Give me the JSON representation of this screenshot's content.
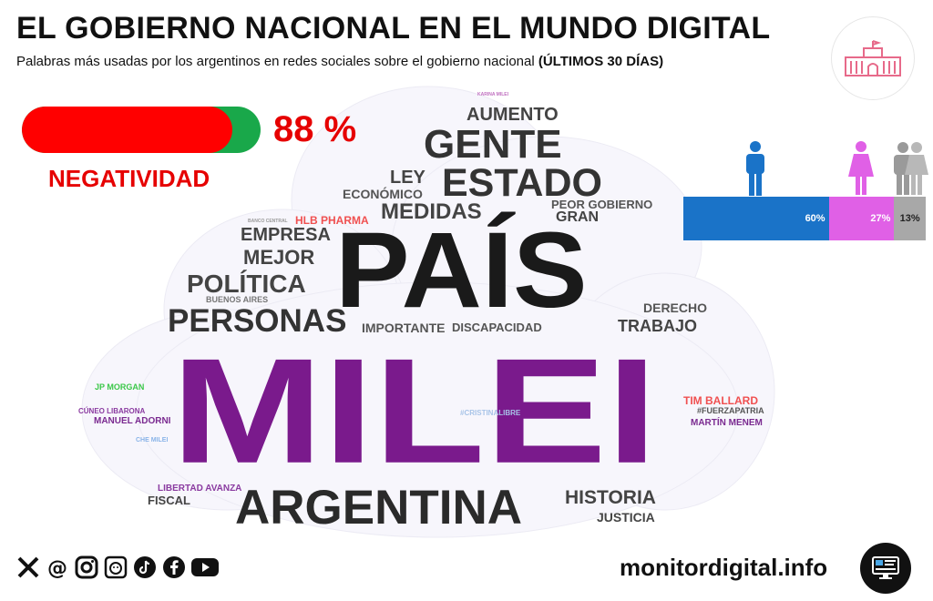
{
  "header": {
    "title": "EL GOBIERNO NACIONAL EN EL MUNDO DIGITAL",
    "subtitle": "Palabras más usadas por los argentinos en redes sociales sobre el gobierno nacional",
    "subtitle_period": "(ÚLTIMOS 30 DÍAS)"
  },
  "sentiment": {
    "percent_text": "88 %",
    "value": 0.88,
    "label": "NEGATIVIDAD",
    "colors": {
      "negative": "#ff0000",
      "positive": "#19a84a",
      "text": "#e60000"
    }
  },
  "gender": {
    "segments": [
      {
        "key": "male",
        "value_text": "60%",
        "value": 60,
        "color": "#1a73c8",
        "icon": "man-icon"
      },
      {
        "key": "female",
        "value_text": "27%",
        "value": 27,
        "color": "#e060e6",
        "icon": "woman-icon"
      },
      {
        "key": "other",
        "value_text": "13%",
        "value": 13,
        "color": "#a8a8a8",
        "icon": "group-icon"
      }
    ]
  },
  "wordcloud": {
    "words": [
      {
        "text": "MILEI",
        "color": "#7a1a8c"
      },
      {
        "text": "PAÍS",
        "color": "#1a1a1a"
      },
      {
        "text": "ARGENTINA",
        "color": "#2a2a2a"
      },
      {
        "text": "GENTE",
        "color": "#333333"
      },
      {
        "text": "ESTADO",
        "color": "#333333"
      },
      {
        "text": "AUMENTO",
        "color": "#444444"
      },
      {
        "text": "LEY",
        "color": "#444444"
      },
      {
        "text": "ECONÓMICO",
        "color": "#555555"
      },
      {
        "text": "MEDIDAS",
        "color": "#444444"
      },
      {
        "text": "PEOR GOBIERNO",
        "color": "#555555"
      },
      {
        "text": "GRAN",
        "color": "#444444"
      },
      {
        "text": "HLB PHARMA",
        "color": "#f05050"
      },
      {
        "text": "EMPRESA",
        "color": "#444444"
      },
      {
        "text": "MEJOR",
        "color": "#444444"
      },
      {
        "text": "POLÍTICA",
        "color": "#444444"
      },
      {
        "text": "BUENOS AIRES",
        "color": "#777777"
      },
      {
        "text": "PERSONAS",
        "color": "#333333"
      },
      {
        "text": "IMPORTANTE",
        "color": "#555555"
      },
      {
        "text": "DISCAPACIDAD",
        "color": "#555555"
      },
      {
        "text": "DERECHO",
        "color": "#555555"
      },
      {
        "text": "TRABAJO",
        "color": "#444444"
      },
      {
        "text": "JP MORGAN",
        "color": "#3cc84a"
      },
      {
        "text": "CÚNEO LIBARONA",
        "color": "#8a3aa0"
      },
      {
        "text": "MANUEL ADORNI",
        "color": "#7a2a90"
      },
      {
        "text": "CHE MILEI",
        "color": "#8ab4e8"
      },
      {
        "text": "#CRISTINALIBRE",
        "color": "#a8c4e8"
      },
      {
        "text": "TIM BALLARD",
        "color": "#f05050"
      },
      {
        "text": "#FUERZAPATRIA",
        "color": "#555555"
      },
      {
        "text": "MARTÍN MENEM",
        "color": "#7a2a90"
      },
      {
        "text": "LIBERTAD AVANZA",
        "color": "#8a3aa0"
      },
      {
        "text": "FISCAL",
        "color": "#444444"
      },
      {
        "text": "HISTORIA",
        "color": "#444444"
      },
      {
        "text": "JUSTICIA",
        "color": "#444444"
      },
      {
        "text": "BANCO CENTRAL",
        "color": "#999999"
      },
      {
        "text": "KARINA MILEI",
        "color": "#c070c0"
      }
    ]
  },
  "footer": {
    "social_icons": [
      "x-icon",
      "threads-icon",
      "instagram-icon",
      "gettr-icon",
      "tiktok-icon",
      "facebook-icon",
      "youtube-icon"
    ],
    "site": "monitordigital.info"
  }
}
